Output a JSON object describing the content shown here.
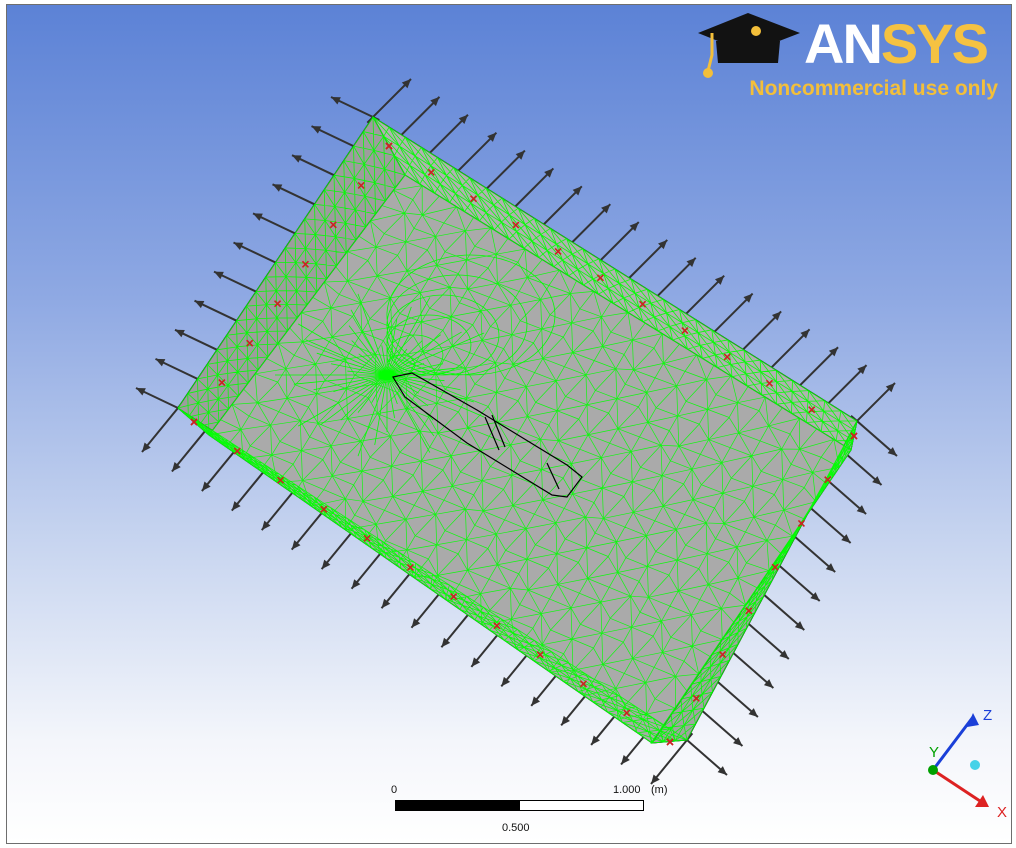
{
  "logo": {
    "brand_ans": "AN",
    "brand_sys": "SYS",
    "tagline": "Noncommercial use only"
  },
  "scale_bar": {
    "label_zero": "0",
    "label_end": "1.000",
    "unit": "(m)",
    "label_mid": "0.500"
  },
  "triad": {
    "x_label": "X",
    "y_label": "Y",
    "z_label": "Z"
  },
  "colors": {
    "mesh": "#00ff00",
    "arrow": "#333333",
    "marker": "#cc2222",
    "x_axis": "#dd2222",
    "y_axis": "#00a000",
    "z_axis": "#1a3fd8"
  },
  "icons": [
    "graduation-cap-icon",
    "pressure-arrow-icon",
    "node-marker-icon"
  ]
}
